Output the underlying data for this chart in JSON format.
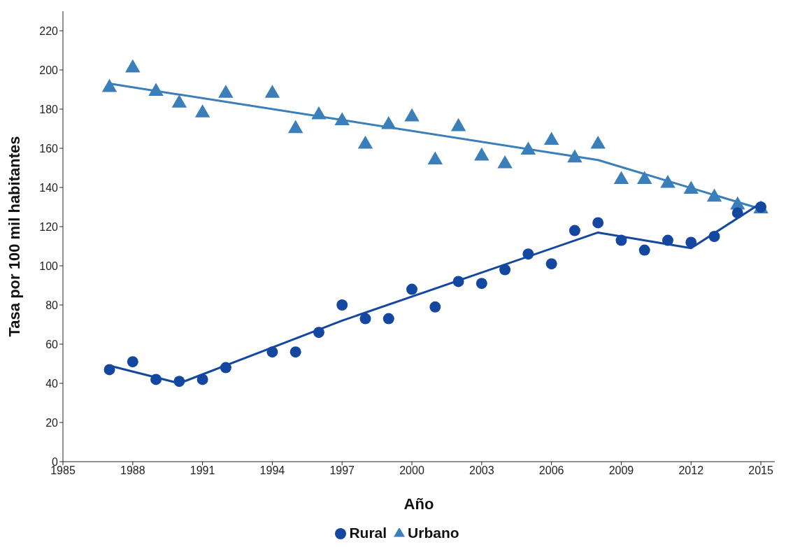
{
  "chart_data": {
    "type": "scatter",
    "xlabel": "Año",
    "ylabel": "Tasa por 100 mil habitantes",
    "xlim": [
      1985,
      2015.6
    ],
    "xticks": [
      1985,
      1988,
      1991,
      1994,
      1997,
      2000,
      2003,
      2006,
      2009,
      2012,
      2015
    ],
    "ylim": [
      0,
      230
    ],
    "yticks": [
      0,
      20,
      40,
      60,
      80,
      100,
      120,
      140,
      160,
      180,
      200,
      220
    ],
    "grid": false,
    "legend": "bottom",
    "series": [
      {
        "name": "Rural",
        "marker": "circle",
        "color": "#1448a0",
        "x": [
          1987,
          1988,
          1989,
          1990,
          1991,
          1992,
          1994,
          1995,
          1996,
          1997,
          1998,
          1999,
          2000,
          2001,
          2002,
          2003,
          2004,
          2005,
          2006,
          2007,
          2008,
          2009,
          2010,
          2011,
          2012,
          2013,
          2014,
          2015
        ],
        "values": [
          47,
          51,
          42,
          41,
          42,
          48,
          56,
          56,
          66,
          80,
          73,
          73,
          88,
          79,
          92,
          91,
          98,
          106,
          101,
          118,
          122,
          113,
          108,
          113,
          112,
          115,
          127,
          130
        ]
      },
      {
        "name": "Urbano",
        "marker": "triangle",
        "color": "#3a7fba",
        "x": [
          1987,
          1988,
          1989,
          1990,
          1991,
          1992,
          1994,
          1995,
          1996,
          1997,
          1998,
          1999,
          2000,
          2001,
          2002,
          2003,
          2004,
          2005,
          2006,
          2007,
          2008,
          2009,
          2010,
          2011,
          2012,
          2013,
          2014,
          2015
        ],
        "values": [
          191,
          201,
          189,
          183,
          178,
          188,
          188,
          170,
          177,
          174,
          162,
          172,
          176,
          154,
          171,
          156,
          152,
          159,
          164,
          155,
          162,
          144,
          144,
          142,
          139,
          135,
          131,
          129
        ]
      },
      {
        "type": "line",
        "marker": "none",
        "color": "#1448a0",
        "x": [
          1987,
          1990,
          1997,
          2008,
          2012,
          2015
        ],
        "values": [
          49,
          40,
          72,
          117,
          109,
          132
        ]
      },
      {
        "type": "line",
        "marker": "none",
        "color": "#3a7fba",
        "x": [
          1987,
          2008,
          2015
        ],
        "values": [
          193,
          154,
          129
        ]
      }
    ]
  }
}
